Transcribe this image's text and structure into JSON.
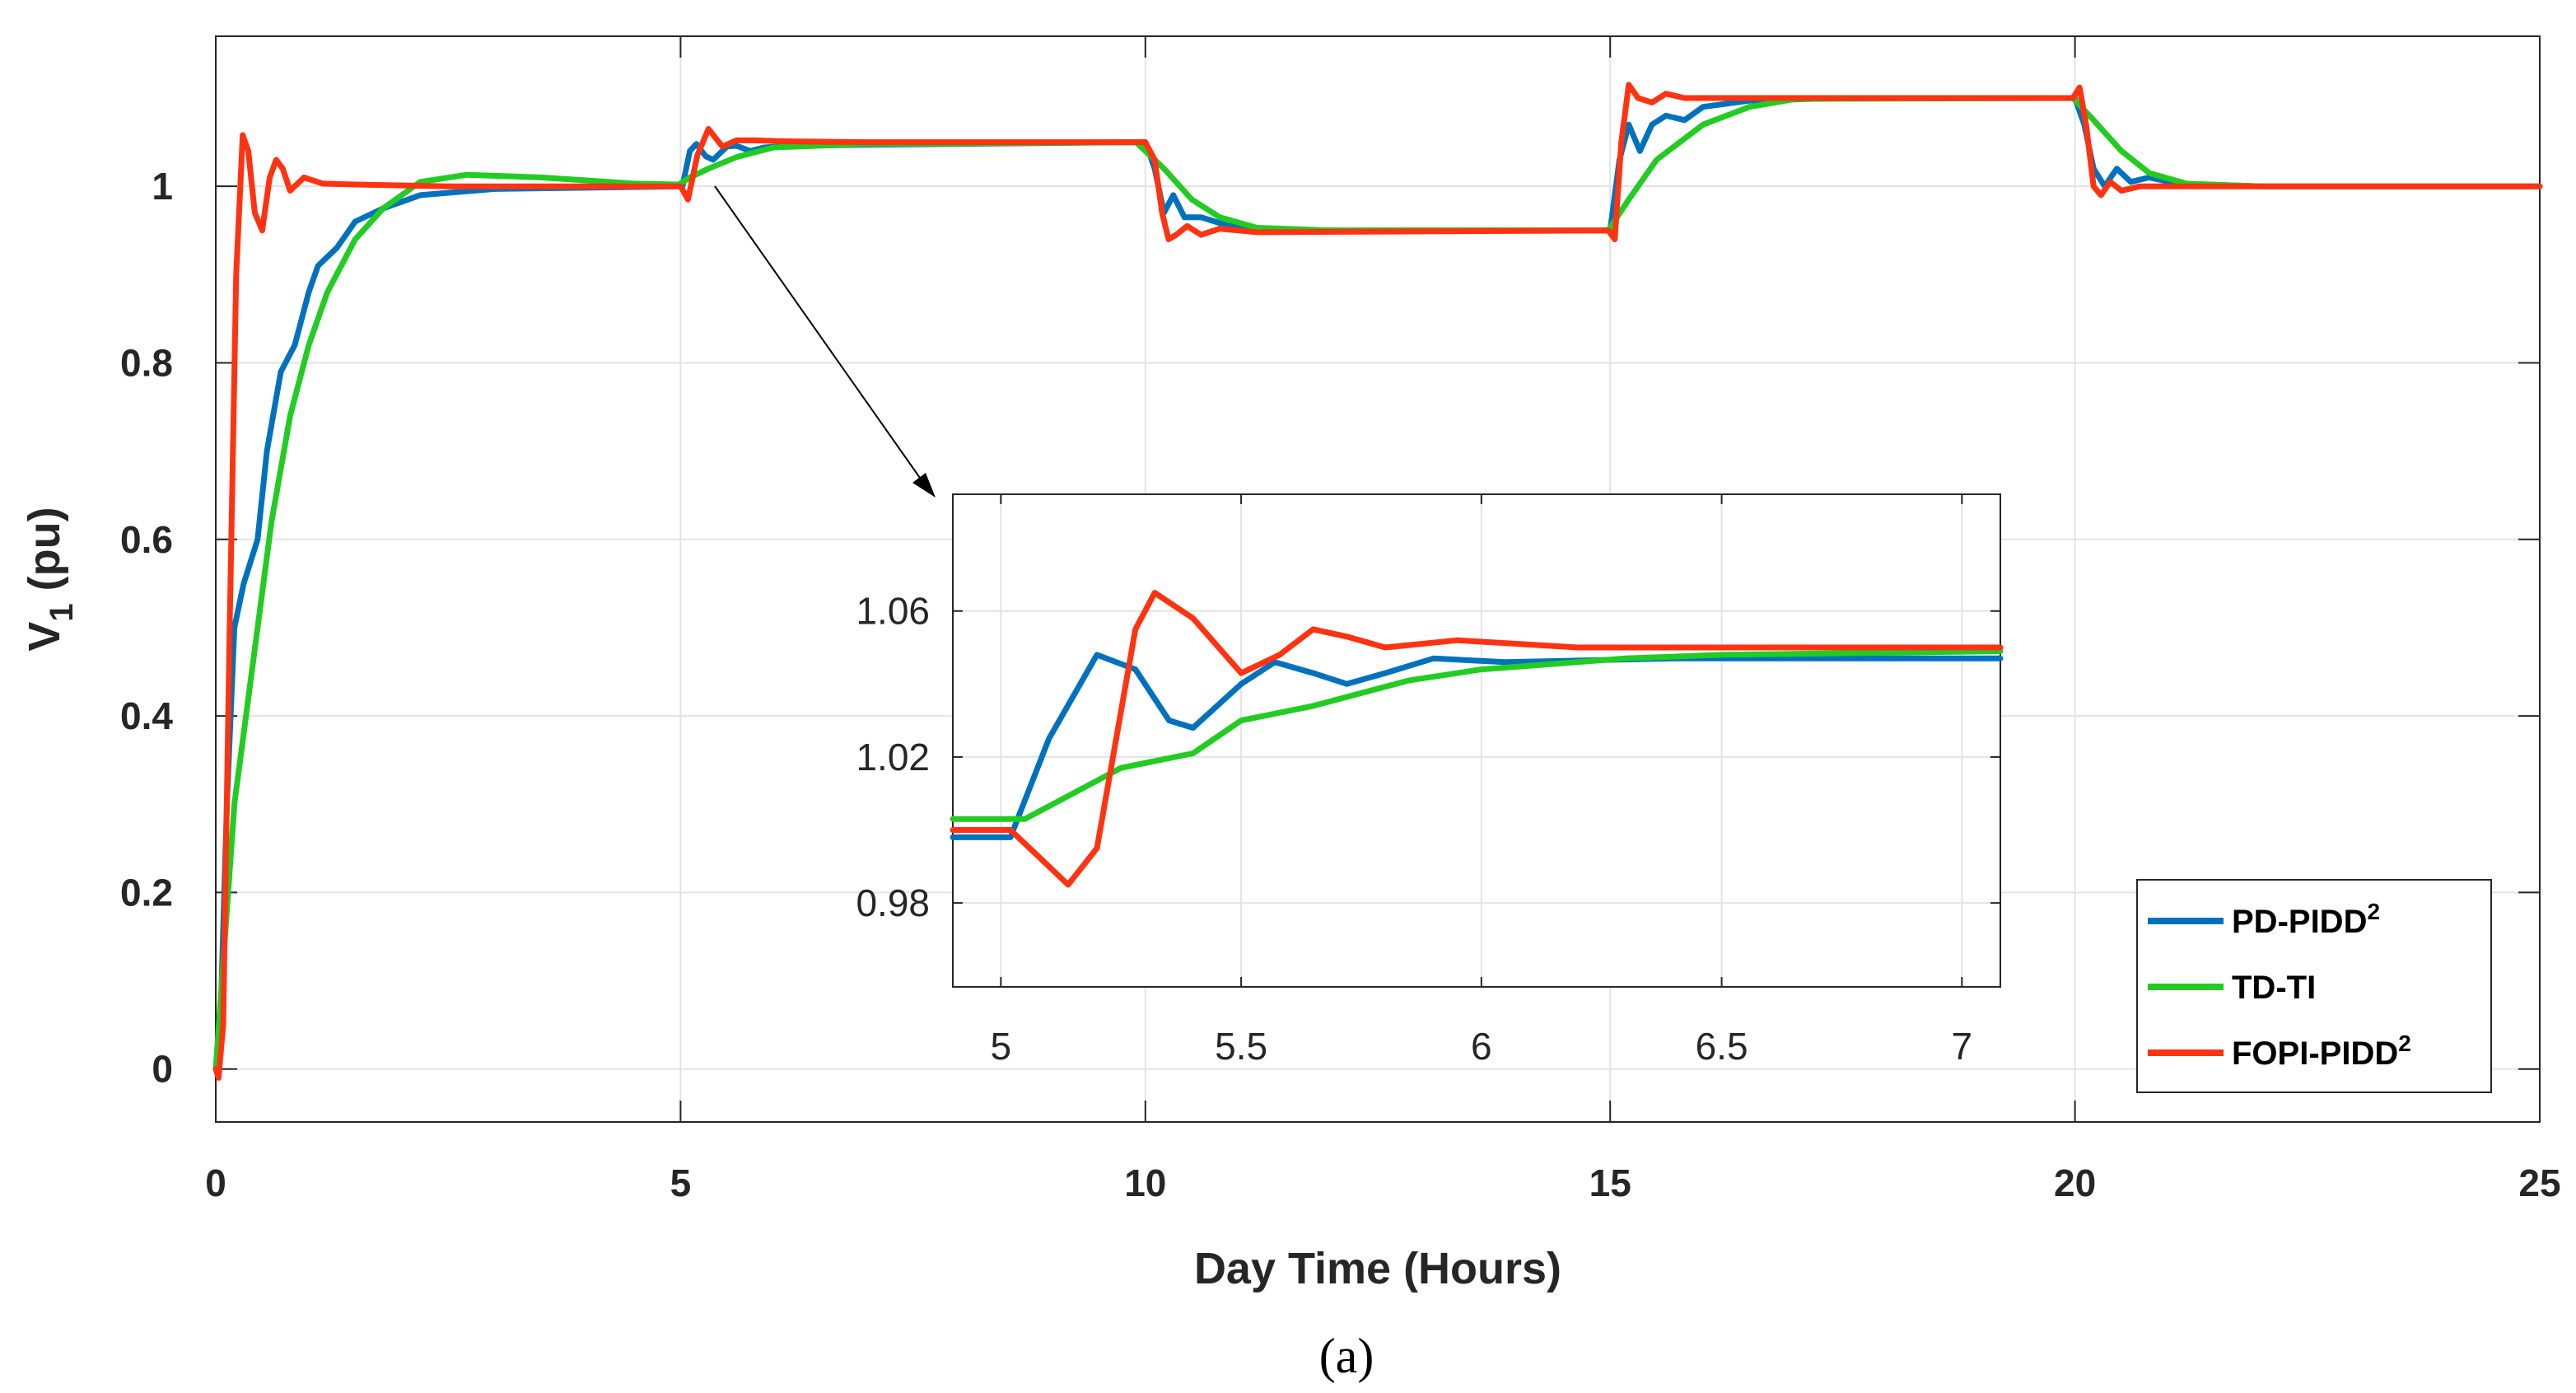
{
  "chart_data": [
    {
      "type": "line",
      "role": "main",
      "xlabel": "Day Time (Hours)",
      "ylabel": "V",
      "ylabel_subscript": "1",
      "ylabel_suffix": " (pu)",
      "xlim": [
        0,
        25
      ],
      "ylim": [
        -0.06,
        1.17
      ],
      "xticks": [
        0,
        5,
        10,
        15,
        20,
        25
      ],
      "xtick_labels": [
        "0",
        "5",
        "10",
        "15",
        "20",
        "25"
      ],
      "yticks": [
        0,
        0.2,
        0.4,
        0.6,
        0.8,
        1
      ],
      "ytick_labels": [
        "0",
        "0.2",
        "0.4",
        "0.6",
        "0.8",
        "1"
      ],
      "grid": true,
      "legend": {
        "position": "bottom-right",
        "entries": [
          {
            "name": "PD-PIDD",
            "sup": "2",
            "color": "#0072BD"
          },
          {
            "name": "TD-TI",
            "sup": "",
            "color": "#22CC22"
          },
          {
            "name": "FOPI-PIDD",
            "sup": "2",
            "color": "#FF3311"
          }
        ]
      },
      "series": [
        {
          "name": "PD-PIDD²",
          "color": "#0072BD",
          "points": [
            [
              0,
              0
            ],
            [
              0.05,
              0.05
            ],
            [
              0.12,
              0.3
            ],
            [
              0.2,
              0.5
            ],
            [
              0.3,
              0.55
            ],
            [
              0.45,
              0.6
            ],
            [
              0.55,
              0.7
            ],
            [
              0.7,
              0.79
            ],
            [
              0.85,
              0.82
            ],
            [
              1.0,
              0.88
            ],
            [
              1.1,
              0.91
            ],
            [
              1.3,
              0.93
            ],
            [
              1.5,
              0.96
            ],
            [
              1.8,
              0.975
            ],
            [
              2.2,
              0.99
            ],
            [
              3,
              0.997
            ],
            [
              4.98,
              1.0
            ],
            [
              5.02,
              1.0
            ],
            [
              5.1,
              1.04
            ],
            [
              5.17,
              1.048
            ],
            [
              5.27,
              1.034
            ],
            [
              5.35,
              1.03
            ],
            [
              5.5,
              1.045
            ],
            [
              5.6,
              1.046
            ],
            [
              5.75,
              1.04
            ],
            [
              5.9,
              1.044
            ],
            [
              6.2,
              1.046
            ],
            [
              7,
              1.047
            ],
            [
              9.9,
              1.05
            ],
            [
              10.0,
              1.05
            ],
            [
              10.1,
              1.02
            ],
            [
              10.2,
              0.97
            ],
            [
              10.3,
              0.99
            ],
            [
              10.42,
              0.965
            ],
            [
              10.6,
              0.965
            ],
            [
              10.9,
              0.955
            ],
            [
              11.5,
              0.95
            ],
            [
              14.98,
              0.95
            ],
            [
              15.0,
              0.95
            ],
            [
              15.1,
              1.03
            ],
            [
              15.2,
              1.07
            ],
            [
              15.32,
              1.04
            ],
            [
              15.45,
              1.07
            ],
            [
              15.6,
              1.08
            ],
            [
              15.8,
              1.075
            ],
            [
              16.0,
              1.09
            ],
            [
              16.5,
              1.097
            ],
            [
              17.5,
              1.1
            ],
            [
              19.98,
              1.1
            ],
            [
              20.0,
              1.1
            ],
            [
              20.1,
              1.07
            ],
            [
              20.2,
              1.02
            ],
            [
              20.32,
              1.0
            ],
            [
              20.45,
              1.02
            ],
            [
              20.6,
              1.005
            ],
            [
              20.8,
              1.01
            ],
            [
              21.1,
              1.003
            ],
            [
              22,
              1.0
            ],
            [
              25,
              1.0
            ]
          ]
        },
        {
          "name": "TD-TI",
          "color": "#22CC22",
          "points": [
            [
              0,
              0
            ],
            [
              0.1,
              0.15
            ],
            [
              0.2,
              0.3
            ],
            [
              0.3,
              0.38
            ],
            [
              0.45,
              0.5
            ],
            [
              0.6,
              0.62
            ],
            [
              0.8,
              0.74
            ],
            [
              1.0,
              0.82
            ],
            [
              1.2,
              0.88
            ],
            [
              1.5,
              0.94
            ],
            [
              1.8,
              0.975
            ],
            [
              2.2,
              1.005
            ],
            [
              2.7,
              1.013
            ],
            [
              3.5,
              1.01
            ],
            [
              4.5,
              1.003
            ],
            [
              4.98,
              1.002
            ],
            [
              5.1,
              1.01
            ],
            [
              5.3,
              1.02
            ],
            [
              5.6,
              1.033
            ],
            [
              6.0,
              1.044
            ],
            [
              7,
              1.048
            ],
            [
              9.9,
              1.05
            ],
            [
              10.2,
              1.02
            ],
            [
              10.5,
              0.985
            ],
            [
              10.8,
              0.965
            ],
            [
              11.2,
              0.953
            ],
            [
              12,
              0.95
            ],
            [
              14.98,
              0.95
            ],
            [
              15.2,
              0.985
            ],
            [
              15.5,
              1.03
            ],
            [
              16.0,
              1.07
            ],
            [
              16.5,
              1.09
            ],
            [
              17,
              1.099
            ],
            [
              19.98,
              1.1
            ],
            [
              20.2,
              1.075
            ],
            [
              20.5,
              1.04
            ],
            [
              20.8,
              1.015
            ],
            [
              21.2,
              1.003
            ],
            [
              22,
              1.0
            ],
            [
              25,
              1.0
            ]
          ]
        },
        {
          "name": "FOPI-PIDD²",
          "color": "#FF3311",
          "points": [
            [
              0,
              0
            ],
            [
              0.03,
              -0.01
            ],
            [
              0.08,
              0.05
            ],
            [
              0.15,
              0.5
            ],
            [
              0.22,
              0.9
            ],
            [
              0.29,
              1.058
            ],
            [
              0.35,
              1.04
            ],
            [
              0.42,
              0.97
            ],
            [
              0.5,
              0.95
            ],
            [
              0.58,
              1.01
            ],
            [
              0.65,
              1.03
            ],
            [
              0.72,
              1.02
            ],
            [
              0.8,
              0.995
            ],
            [
              0.95,
              1.01
            ],
            [
              1.15,
              1.003
            ],
            [
              1.5,
              1.002
            ],
            [
              2.5,
              1.0
            ],
            [
              4.88,
              1.0
            ],
            [
              5.0,
              1.0
            ],
            [
              5.08,
              0.985
            ],
            [
              5.18,
              1.035
            ],
            [
              5.3,
              1.065
            ],
            [
              5.45,
              1.045
            ],
            [
              5.6,
              1.052
            ],
            [
              5.8,
              1.052
            ],
            [
              6.1,
              1.051
            ],
            [
              7,
              1.05
            ],
            [
              9.9,
              1.05
            ],
            [
              10.0,
              1.05
            ],
            [
              10.1,
              1.03
            ],
            [
              10.18,
              0.97
            ],
            [
              10.25,
              0.94
            ],
            [
              10.33,
              0.945
            ],
            [
              10.45,
              0.955
            ],
            [
              10.6,
              0.945
            ],
            [
              10.8,
              0.952
            ],
            [
              11.2,
              0.948
            ],
            [
              14.98,
              0.95
            ],
            [
              15.05,
              0.94
            ],
            [
              15.12,
              1.05
            ],
            [
              15.2,
              1.115
            ],
            [
              15.3,
              1.1
            ],
            [
              15.45,
              1.095
            ],
            [
              15.6,
              1.105
            ],
            [
              15.8,
              1.1
            ],
            [
              19.98,
              1.1
            ],
            [
              20.05,
              1.112
            ],
            [
              20.12,
              1.07
            ],
            [
              20.2,
              1.0
            ],
            [
              20.28,
              0.99
            ],
            [
              20.38,
              1.005
            ],
            [
              20.5,
              0.995
            ],
            [
              20.7,
              1.0
            ],
            [
              25,
              1.0
            ]
          ]
        }
      ]
    },
    {
      "type": "line",
      "role": "inset",
      "xlim": [
        4.9,
        7.08
      ],
      "ylim": [
        0.957,
        1.092
      ],
      "xticks": [
        5,
        5.5,
        6,
        6.5,
        7
      ],
      "xtick_labels": [
        "5",
        "5.5",
        "6",
        "6.5",
        "7"
      ],
      "yticks": [
        0.98,
        1.02,
        1.06
      ],
      "ytick_labels": [
        "0.98",
        "1.02",
        "1.06"
      ],
      "grid": true,
      "series": [
        {
          "name": "PD-PIDD²",
          "color": "#0072BD",
          "points": [
            [
              4.9,
              0.998
            ],
            [
              5.02,
              0.998
            ],
            [
              5.1,
              1.025
            ],
            [
              5.2,
              1.048
            ],
            [
              5.28,
              1.044
            ],
            [
              5.35,
              1.03
            ],
            [
              5.4,
              1.028
            ],
            [
              5.5,
              1.04
            ],
            [
              5.57,
              1.046
            ],
            [
              5.65,
              1.043
            ],
            [
              5.72,
              1.04
            ],
            [
              5.8,
              1.043
            ],
            [
              5.9,
              1.047
            ],
            [
              6.05,
              1.046
            ],
            [
              6.4,
              1.047
            ],
            [
              7.08,
              1.047
            ]
          ]
        },
        {
          "name": "TD-TI",
          "color": "#22CC22",
          "points": [
            [
              4.9,
              1.003
            ],
            [
              5.05,
              1.003
            ],
            [
              5.15,
              1.01
            ],
            [
              5.25,
              1.017
            ],
            [
              5.4,
              1.021
            ],
            [
              5.5,
              1.03
            ],
            [
              5.65,
              1.034
            ],
            [
              5.85,
              1.041
            ],
            [
              6.0,
              1.044
            ],
            [
              6.3,
              1.047
            ],
            [
              6.5,
              1.048
            ],
            [
              7.08,
              1.049
            ]
          ]
        },
        {
          "name": "FOPI-PIDD²",
          "color": "#FF3311",
          "points": [
            [
              4.9,
              1.0
            ],
            [
              5.02,
              1.0
            ],
            [
              5.1,
              0.99
            ],
            [
              5.14,
              0.985
            ],
            [
              5.2,
              0.995
            ],
            [
              5.28,
              1.055
            ],
            [
              5.32,
              1.065
            ],
            [
              5.4,
              1.058
            ],
            [
              5.5,
              1.043
            ],
            [
              5.58,
              1.048
            ],
            [
              5.65,
              1.055
            ],
            [
              5.72,
              1.053
            ],
            [
              5.8,
              1.05
            ],
            [
              5.95,
              1.052
            ],
            [
              6.2,
              1.05
            ],
            [
              7.08,
              1.05
            ]
          ]
        }
      ]
    }
  ],
  "caption": "(a)"
}
